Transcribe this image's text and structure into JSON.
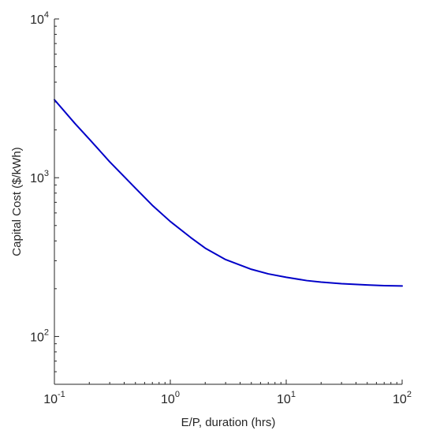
{
  "chart_data": {
    "type": "line",
    "xlabel": "E/P, duration (hrs)",
    "ylabel": "Capital Cost ($/kWh)",
    "x_scale": "log",
    "y_scale": "log",
    "xlim": [
      0.1,
      100
    ],
    "ylim": [
      50,
      10000
    ],
    "x_ticks": [
      {
        "base": "10",
        "exp": "-1",
        "value": 0.1
      },
      {
        "base": "10",
        "exp": "0",
        "value": 1
      },
      {
        "base": "10",
        "exp": "1",
        "value": 10
      },
      {
        "base": "10",
        "exp": "2",
        "value": 100
      }
    ],
    "y_ticks": [
      {
        "base": "10",
        "exp": "2",
        "value": 100
      },
      {
        "base": "10",
        "exp": "3",
        "value": 1000
      },
      {
        "base": "10",
        "exp": "4",
        "value": 10000
      }
    ],
    "grid": false,
    "series": [
      {
        "color": "#0000c8",
        "x": [
          0.1,
          0.15,
          0.2,
          0.3,
          0.5,
          0.7,
          1,
          1.5,
          2,
          3,
          5,
          7,
          10,
          15,
          20,
          30,
          50,
          70,
          100
        ],
        "y": [
          3100,
          2200,
          1750,
          1260,
          860,
          670,
          530,
          420,
          360,
          305,
          265,
          248,
          236,
          225,
          220,
          215,
          211,
          209,
          208
        ]
      }
    ]
  }
}
